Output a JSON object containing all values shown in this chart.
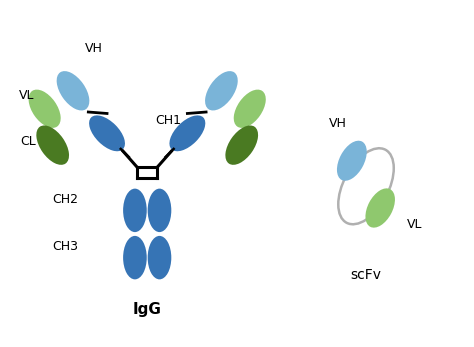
{
  "blue_dark": "#3674b5",
  "blue_light": "#7ab4d8",
  "green_dark": "#4a7a22",
  "green_light": "#8fc86e",
  "linker_color": "#b0b0b0",
  "background": "#ffffff",
  "title_igg": "IgG",
  "title_scfv": "scFv",
  "label_VH": "VH",
  "label_VL": "VL",
  "label_CL": "CL",
  "label_CH1": "CH1",
  "label_CH2": "CH2",
  "label_CH3": "CH3",
  "fs_label": 9,
  "fs_title_igg": 11,
  "fs_title_scfv": 10
}
